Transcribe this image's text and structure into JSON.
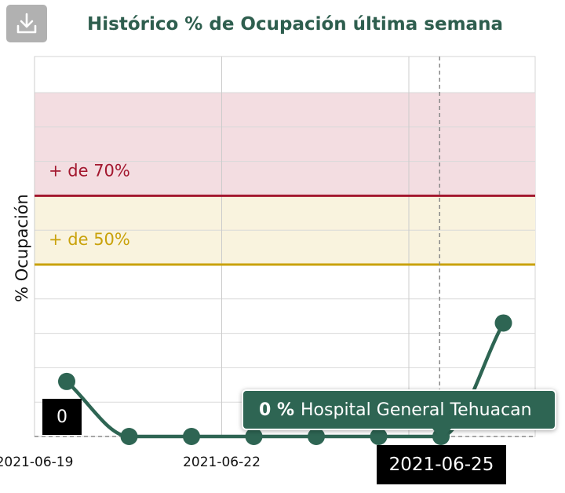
{
  "toolbar": {
    "download_icon": "download-icon"
  },
  "chart_data": {
    "type": "line",
    "title": "Histórico % de Ocupación última semana",
    "ylabel": "% Ocupación",
    "xlabel": "",
    "x": [
      "2021-06-19",
      "2021-06-20",
      "2021-06-21",
      "2021-06-22",
      "2021-06-23",
      "2021-06-24",
      "2021-06-25",
      "2021-06-26"
    ],
    "x_tick_labels": [
      "2021-06-19",
      "2021-06-22"
    ],
    "series": [
      {
        "values": [
          16,
          0,
          0,
          0,
          0,
          0,
          0,
          33
        ],
        "color": "#2e6553"
      }
    ],
    "ylim": [
      0,
      100
    ],
    "grid": true,
    "bands": [
      {
        "label": "+ de 70%",
        "from": 70,
        "to": 100,
        "fill": "#f3dde1",
        "line_color": "#a3182f"
      },
      {
        "label": "+ de 50%",
        "from": 50,
        "to": 70,
        "fill": "#f9f3de",
        "line_color": "#c9a20b"
      }
    ],
    "crosshair": {
      "x_label": "2021-06-25",
      "y_label": "0"
    },
    "tooltip": {
      "value": "0 %",
      "name": "Hospital General Tehuacan"
    }
  }
}
